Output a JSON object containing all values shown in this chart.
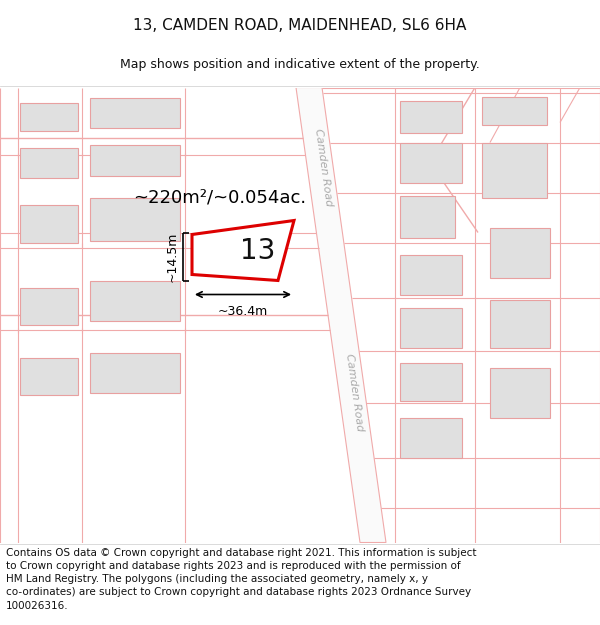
{
  "title": "13, CAMDEN ROAD, MAIDENHEAD, SL6 6HA",
  "subtitle": "Map shows position and indicative extent of the property.",
  "footer": "Contains OS data © Crown copyright and database right 2021. This information is subject to Crown copyright and database rights 2023 and is reproduced with the permission of HM Land Registry. The polygons (including the associated geometry, namely x, y co-ordinates) are subject to Crown copyright and database rights 2023 Ordnance Survey 100026316.",
  "area_label": "~220m²/~0.054ac.",
  "width_label": "~36.4m",
  "height_label": "~14.5m",
  "plot_number": "13",
  "map_bg": "#ffffff",
  "road_line_color": "#f0aaaa",
  "building_fill": "#e0e0e0",
  "building_edge": "#e8a0a0",
  "highlight_color": "#dd0000",
  "text_color": "#111111",
  "road_label_color": "#aaaaaa",
  "title_fontsize": 11,
  "subtitle_fontsize": 9,
  "footer_fontsize": 7.5,
  "annot_fontsize": 9,
  "area_fontsize": 13,
  "plot_num_fontsize": 20
}
